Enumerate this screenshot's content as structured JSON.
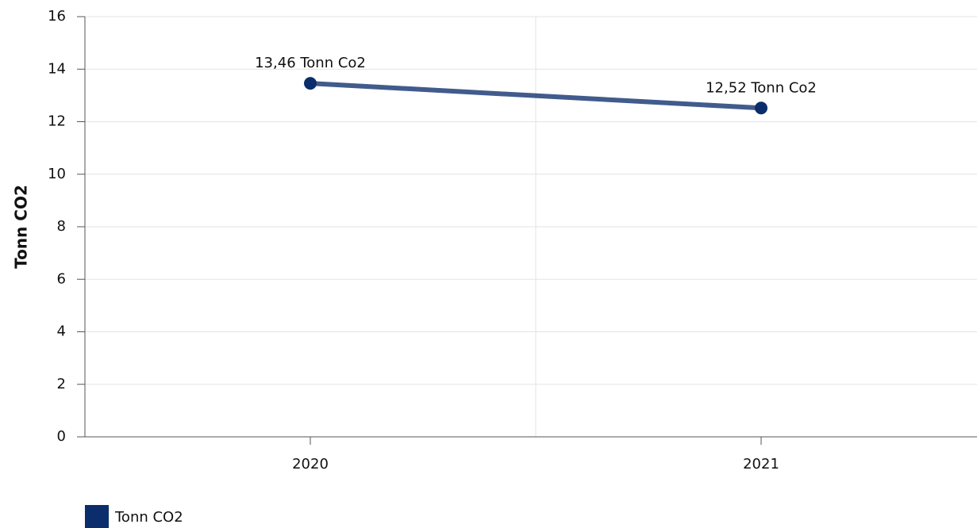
{
  "chart_data": {
    "type": "line",
    "y_label": "Tonn CO2",
    "categories": [
      "2020",
      "2021"
    ],
    "series": [
      {
        "name": "Tonn CO2",
        "color": "#0b2d6b",
        "values": [
          13.46,
          12.52
        ],
        "value_labels": [
          "13,46 Tonn Co2",
          "12,52 Tonn Co2"
        ]
      }
    ],
    "ylim": [
      0,
      16
    ],
    "yticks": [
      0,
      2,
      4,
      6,
      8,
      10,
      12,
      14,
      16
    ],
    "grid": true,
    "legend": "bottom-left"
  }
}
